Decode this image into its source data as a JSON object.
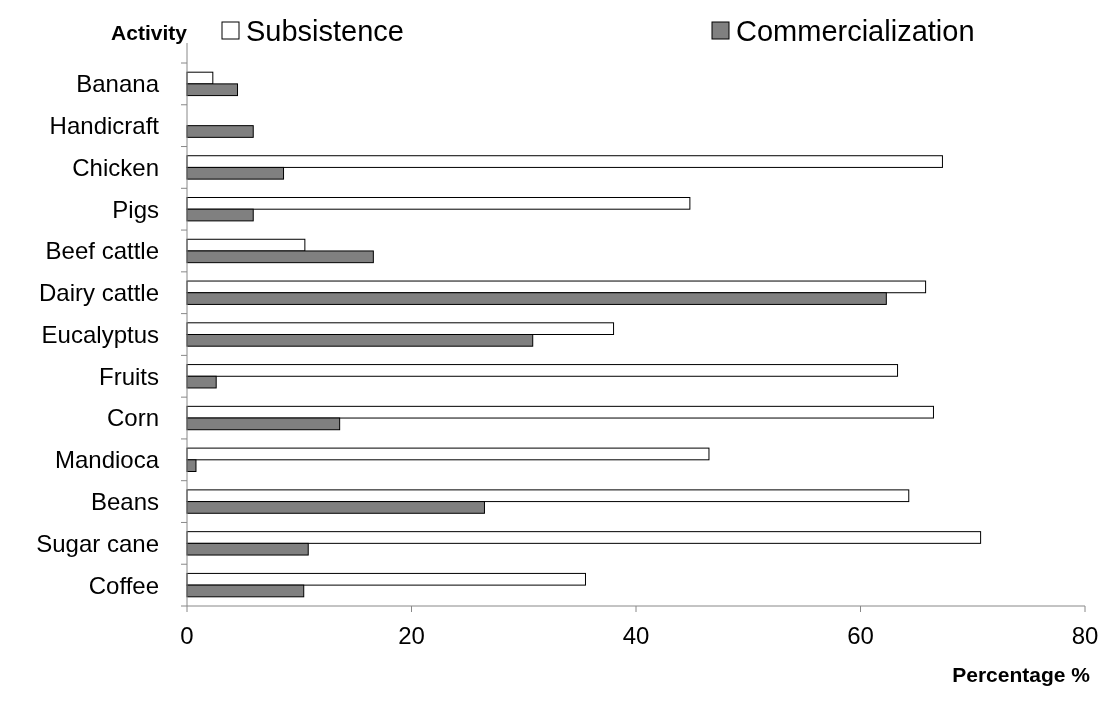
{
  "chart_data": {
    "type": "bar",
    "orientation": "horizontal",
    "ylabel": "Activity",
    "xlabel": "Percentage %",
    "categories": [
      "Banana",
      "Handicraft",
      "Chicken",
      "Pigs",
      "Beef cattle",
      "Dairy cattle",
      "Eucalyptus",
      "Fruits",
      "Corn",
      "Mandioca",
      "Beans",
      "Sugar cane",
      "Coffee"
    ],
    "series": [
      {
        "name": "Subsistence",
        "color": "#ffffff",
        "values": [
          2.3,
          0,
          67.3,
          44.8,
          10.5,
          65.8,
          38,
          63.3,
          66.5,
          46.5,
          64.3,
          70.7,
          35.5
        ]
      },
      {
        "name": "Commercialization",
        "color": "#808080",
        "values": [
          4.5,
          5.9,
          8.6,
          5.9,
          16.6,
          62.3,
          30.8,
          2.6,
          13.6,
          0.8,
          26.5,
          10.8,
          10.4
        ]
      }
    ],
    "xlim": [
      0,
      80
    ],
    "xticks": [
      0,
      20,
      40,
      60,
      80
    ],
    "grid": false,
    "legend": "top"
  }
}
